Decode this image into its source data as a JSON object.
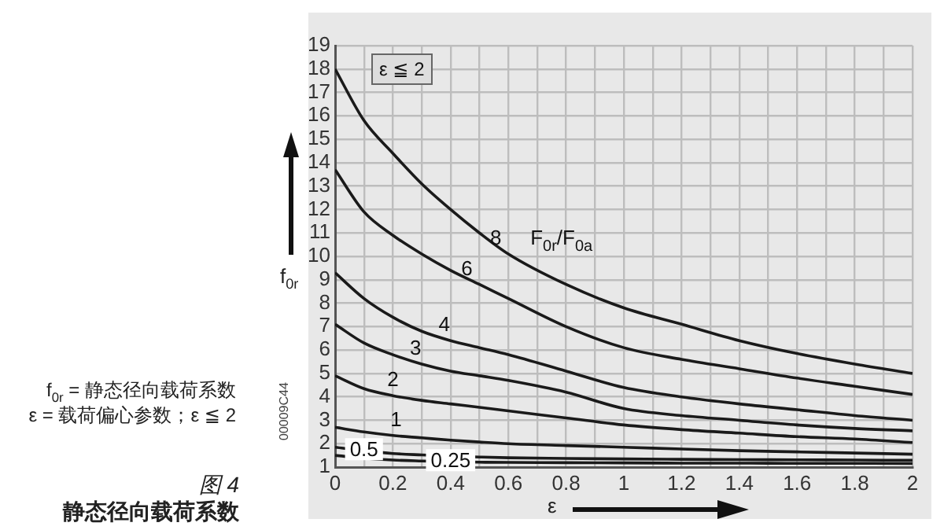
{
  "chart_data": {
    "type": "line",
    "title": "静态径向载荷系数",
    "subtitle": "图 4",
    "xlabel": "ε",
    "ylabel": "f$_{0r}$",
    "legend_title": "F$_{0r}$/F$_{0a}$",
    "annotations": [
      "f$_{0r}$ = 静态径向载荷系数",
      "ε = 载荷偏心参数；ε ≦ 2",
      "ε ≦ 2",
      "00009C44"
    ],
    "x": [
      0,
      0.1,
      0.2,
      0.3,
      0.4,
      0.5,
      0.6,
      0.8,
      1.0,
      1.2,
      1.4,
      1.6,
      1.8,
      2.0
    ],
    "series": [
      {
        "name": "8",
        "color": "#1a1a1a",
        "values": [
          18,
          15.8,
          14.4,
          13.1,
          12.0,
          11.0,
          10.1,
          8.8,
          7.8,
          7.1,
          6.4,
          5.85,
          5.4,
          5.0
        ]
      },
      {
        "name": "6",
        "color": "#1a1a1a",
        "values": [
          13.7,
          11.9,
          10.9,
          10.1,
          9.4,
          8.8,
          8.2,
          7.0,
          6.1,
          5.6,
          5.2,
          4.8,
          4.45,
          4.1
        ]
      },
      {
        "name": "4",
        "color": "#1a1a1a",
        "values": [
          9.3,
          8.2,
          7.4,
          6.8,
          6.4,
          6.1,
          5.8,
          5.1,
          4.4,
          4.0,
          3.7,
          3.45,
          3.2,
          3.0
        ]
      },
      {
        "name": "3",
        "color": "#1a1a1a",
        "values": [
          7.1,
          6.3,
          5.8,
          5.4,
          5.1,
          4.9,
          4.7,
          4.2,
          3.5,
          3.2,
          3.0,
          2.8,
          2.65,
          2.55
        ]
      },
      {
        "name": "2",
        "color": "#1a1a1a",
        "values": [
          4.9,
          4.35,
          4.05,
          3.85,
          3.7,
          3.55,
          3.4,
          3.1,
          2.8,
          2.6,
          2.45,
          2.3,
          2.2,
          2.05
        ]
      },
      {
        "name": "1",
        "color": "#1a1a1a",
        "values": [
          2.7,
          2.5,
          2.35,
          2.25,
          2.15,
          2.07,
          2.0,
          1.92,
          1.85,
          1.77,
          1.7,
          1.65,
          1.6,
          1.55
        ]
      },
      {
        "name": "0.5",
        "color": "#1a1a1a",
        "values": [
          1.85,
          1.7,
          1.58,
          1.52,
          1.47,
          1.43,
          1.4,
          1.37,
          1.35,
          1.33,
          1.32,
          1.31,
          1.3,
          1.29
        ]
      },
      {
        "name": "0.25",
        "color": "#1a1a1a",
        "values": [
          1.5,
          1.38,
          1.3,
          1.26,
          1.23,
          1.21,
          1.2,
          1.19,
          1.18,
          1.17,
          1.17,
          1.16,
          1.16,
          1.15
        ]
      }
    ],
    "xlim": [
      0,
      2
    ],
    "xticks": [
      0,
      {
        "value": 0.1,
        "label": null
      },
      0.2,
      {
        "value": 0.3,
        "label": null
      },
      0.4,
      {
        "value": 0.5,
        "label": null
      },
      0.6,
      {
        "value": 0.7,
        "label": null
      },
      0.8,
      {
        "value": 0.9,
        "label": null
      },
      1.0,
      {
        "value": 1.1,
        "label": null
      },
      1.2,
      {
        "value": 1.3,
        "label": null
      },
      1.4,
      {
        "value": 1.5,
        "label": null
      },
      1.6,
      {
        "value": 1.7,
        "label": null
      },
      1.8,
      {
        "value": 1.9,
        "label": null
      },
      2
    ],
    "ylim": [
      1,
      19
    ],
    "yticks": [
      1,
      2,
      3,
      4,
      5,
      6,
      7,
      8,
      9,
      10,
      11,
      12,
      13,
      14,
      15,
      16,
      17,
      18,
      19
    ],
    "grid": true,
    "legend": false,
    "marker": "none",
    "line_style": "solid"
  }
}
